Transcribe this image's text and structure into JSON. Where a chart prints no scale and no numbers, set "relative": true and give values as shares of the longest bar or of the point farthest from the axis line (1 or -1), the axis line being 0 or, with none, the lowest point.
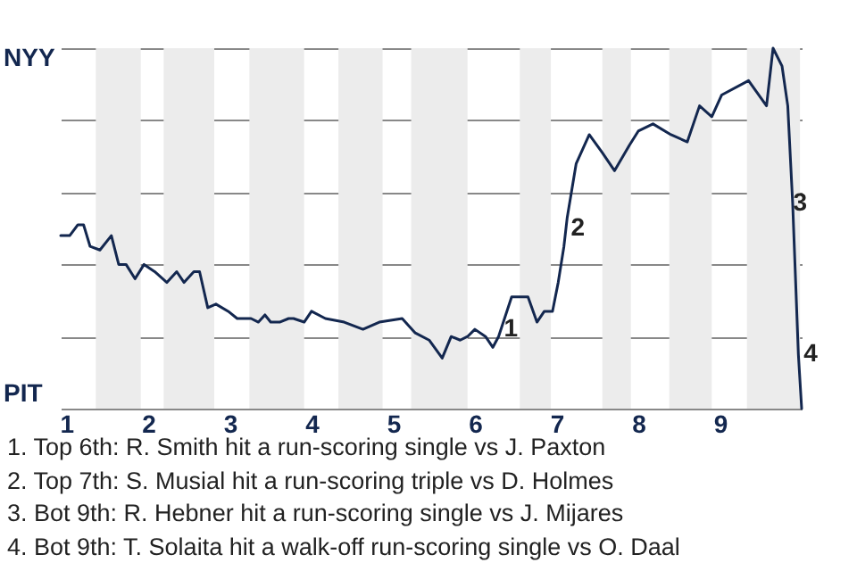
{
  "chart_data": {
    "type": "line",
    "relative": true,
    "x": [
      0.93,
      1.04,
      1.14,
      1.21,
      1.29,
      1.41,
      1.55,
      1.64,
      1.73,
      1.84,
      1.95,
      2.08,
      2.23,
      2.35,
      2.44,
      2.56,
      2.63,
      2.73,
      2.83,
      2.98,
      3.09,
      3.26,
      3.35,
      3.43,
      3.5,
      3.61,
      3.72,
      3.78,
      3.91,
      4,
      4.17,
      4.4,
      4.63,
      4.83,
      5.11,
      5.27,
      5.44,
      5.6,
      5.71,
      5.82,
      5.91,
      6,
      6.13,
      6.22,
      6.29,
      6.45,
      6.65,
      6.76,
      6.85,
      6.95,
      7.02,
      7.09,
      7.13,
      7.24,
      7.4,
      7.56,
      7.71,
      7.89,
      8,
      8.18,
      8.4,
      8.6,
      8.75,
      8.9,
      9.02,
      9.35,
      9.57,
      9.65,
      9.76,
      9.83,
      9.89,
      9.96,
      10
    ],
    "series": [
      {
        "color": "#13274f",
        "values": [
          0.48,
          0.48,
          0.51,
          0.51,
          0.45,
          0.44,
          0.48,
          0.4,
          0.4,
          0.36,
          0.4,
          0.38,
          0.35,
          0.38,
          0.35,
          0.38,
          0.38,
          0.28,
          0.29,
          0.27,
          0.25,
          0.25,
          0.24,
          0.26,
          0.24,
          0.24,
          0.25,
          0.25,
          0.24,
          0.27,
          0.25,
          0.24,
          0.22,
          0.24,
          0.25,
          0.21,
          0.19,
          0.14,
          0.2,
          0.19,
          0.2,
          0.22,
          0.2,
          0.17,
          0.2,
          0.31,
          0.31,
          0.24,
          0.27,
          0.27,
          0.35,
          0.45,
          0.53,
          0.68,
          0.76,
          0.71,
          0.66,
          0.73,
          0.77,
          0.79,
          0.76,
          0.74,
          0.84,
          0.81,
          0.87,
          0.91,
          0.84,
          1,
          0.95,
          0.84,
          0.57,
          0.15,
          0
        ]
      }
    ],
    "xlim": [
      0.93,
      10
    ],
    "xticks": [
      1,
      2,
      3,
      4,
      5,
      6,
      7,
      8,
      9
    ],
    "grid": "y",
    "bands": [
      {
        "axis": "x",
        "from": 1.36,
        "to": 1.91,
        "color": "#ececec"
      },
      {
        "axis": "x",
        "from": 2.19,
        "to": 2.81,
        "color": "#ececec"
      },
      {
        "axis": "x",
        "from": 3.24,
        "to": 3.91,
        "color": "#ececec"
      },
      {
        "axis": "x",
        "from": 4.33,
        "to": 4.87,
        "color": "#ececec"
      },
      {
        "axis": "x",
        "from": 5.22,
        "to": 5.91,
        "color": "#ececec"
      },
      {
        "axis": "x",
        "from": 6.55,
        "to": 6.93,
        "color": "#ececec"
      },
      {
        "axis": "x",
        "from": 7.56,
        "to": 7.91,
        "color": "#ececec"
      },
      {
        "axis": "x",
        "from": 8.38,
        "to": 8.9,
        "color": "#ececec"
      },
      {
        "axis": "x",
        "from": 9.33,
        "to": 9.98,
        "color": "#ececec"
      }
    ],
    "annotations": [
      "NYY",
      "PIT",
      {
        "text": "1",
        "x": 6.29,
        "y": 0.22
      },
      {
        "text": "2",
        "x": 7.11,
        "y": 0.5
      },
      {
        "text": "3",
        "x": 9.83,
        "y": 0.57
      },
      {
        "text": "4",
        "x": 9.96,
        "y": 0.15
      },
      "1. Top 6th: R. Smith hit a run-scoring single vs J. Paxton",
      "2. Top 7th: S. Musial hit a run-scoring triple vs D. Holmes",
      "3. Bot 9th: R. Hebner hit a run-scoring single vs J. Mijares",
      "4. Bot 9th: T. Solaita hit a walk-off run-scoring single vs O. Daal"
    ]
  }
}
